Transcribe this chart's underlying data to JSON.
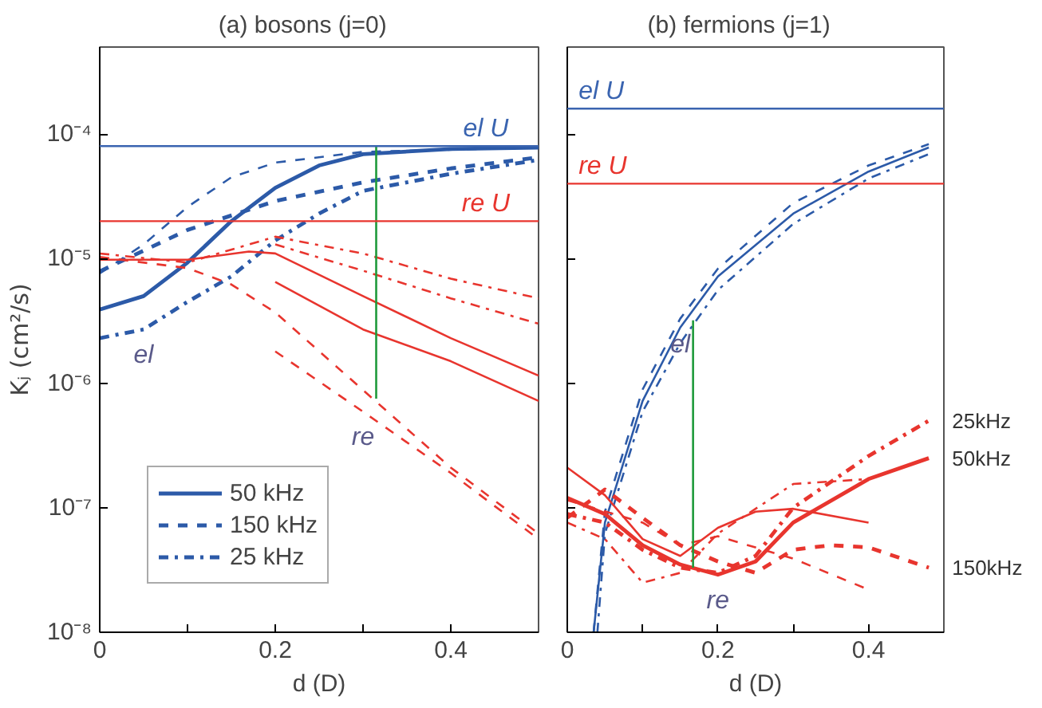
{
  "chart_data": [
    {
      "type": "line",
      "title": "(a)      bosons (j=0)",
      "xlabel": "d (D)",
      "ylabel": "Kⱼ (cm²/s)",
      "log": "y",
      "grid": false,
      "legend": "bottom left",
      "marker": "none",
      "xlim": [
        0,
        0.5
      ],
      "xticks": [
        {
          "value": 0,
          "label": "0"
        },
        {
          "value": 0.1,
          "label": null
        },
        {
          "value": 0.2,
          "label": "0.2"
        },
        {
          "value": 0.3,
          "label": null
        },
        {
          "value": 0.4,
          "label": "0.4"
        }
      ],
      "ylim": [
        1e-08,
        0.0005
      ],
      "yticks": [
        {
          "value": 1e-08,
          "label": "10⁻⁸"
        },
        {
          "value": 1e-07,
          "label": "10⁻⁷"
        },
        {
          "value": 1e-06,
          "label": "10⁻⁶"
        },
        {
          "value": 1e-05,
          "label": "10⁻⁵"
        },
        {
          "value": 0.0001,
          "label": "10⁻⁴"
        }
      ],
      "ref_lines": [
        {
          "axis": "y",
          "value": 8e-05,
          "label": "el U",
          "color": "#3a64b0"
        },
        {
          "axis": "y",
          "value": 2e-05,
          "label": "re U",
          "color": "#e8352e"
        }
      ],
      "annotations": [
        {
          "text": "el",
          "x": 0.05,
          "y": 2.7e-06
        },
        {
          "text": "re",
          "x": 0.3,
          "y": 5.9e-07
        }
      ],
      "series": [
        {
          "name": "50 kHz",
          "color": "#2c5aa8",
          "line_style": "solid",
          "x": [
            0,
            0.05,
            0.1,
            0.15,
            0.2,
            0.25,
            0.3,
            0.4,
            0.5
          ],
          "values": [
            3.9e-06,
            5e-06,
            9.3e-06,
            2e-05,
            3.7e-05,
            5.6e-05,
            6.9e-05,
            7.6e-05,
            7.8e-05
          ]
        },
        {
          "name": "150 kHz",
          "color": "#2c5aa8",
          "line_style": "dashed",
          "x": [
            0,
            0.1,
            0.2,
            0.3,
            0.4,
            0.5
          ],
          "values": [
            7.9e-06,
            1.7e-05,
            2.9e-05,
            4.1e-05,
            5.3e-05,
            6.5e-05
          ]
        },
        {
          "name": "25 kHz",
          "color": "#2c5aa8",
          "line_style": "dashdot",
          "x": [
            0,
            0.05,
            0.1,
            0.15,
            0.2,
            0.25,
            0.3,
            0.4,
            0.5
          ],
          "values": [
            2.3e-06,
            2.7e-06,
            4.5e-06,
            7.2e-06,
            1.4e-05,
            2.3e-05,
            3.5e-05,
            4.8e-05,
            6.2e-05
          ]
        },
        {
          "color": "#2c5aa8",
          "line_style": "dashed",
          "x": [
            0,
            0.05,
            0.1,
            0.15,
            0.2,
            0.3,
            0.5
          ],
          "values": [
            7.6e-06,
            1.3e-05,
            2.6e-05,
            4.5e-05,
            5.9e-05,
            7.2e-05,
            7.8e-05
          ]
        },
        {
          "color": "#e8352e",
          "line_style": "solid",
          "x": [
            0,
            0.1,
            0.17,
            0.2,
            0.3,
            0.4,
            0.5
          ],
          "values": [
            9.8e-06,
            9.8e-06,
            1.14e-05,
            1.1e-05,
            5e-06,
            2.3e-06,
            1.15e-06
          ]
        },
        {
          "color": "#e8352e",
          "line_style": "solid",
          "x": [
            0.2,
            0.3,
            0.4,
            0.5
          ],
          "values": [
            6.5e-06,
            2.7e-06,
            1.5e-06,
            7.2e-07
          ]
        },
        {
          "color": "#e8352e",
          "line_style": "dashed",
          "x": [
            0,
            0.1,
            0.15,
            0.2,
            0.3,
            0.4,
            0.5
          ],
          "values": [
            1.03e-05,
            8.4e-06,
            6.2e-06,
            3.7e-06,
            8.8e-07,
            2.1e-07,
            6.2e-08
          ]
        },
        {
          "color": "#e8352e",
          "line_style": "dashed",
          "x": [
            0.2,
            0.3,
            0.4,
            0.5
          ],
          "values": [
            1.8e-06,
            5.9e-07,
            1.9e-07,
            5.6e-08
          ]
        },
        {
          "color": "#e8352e",
          "line_style": "dashdot",
          "x": [
            0,
            0.1,
            0.2,
            0.3,
            0.4,
            0.5
          ],
          "values": [
            1.1e-05,
            9.3e-06,
            1.5e-05,
            1.1e-05,
            6.9e-06,
            4.8e-06
          ]
        },
        {
          "color": "#e8352e",
          "line_style": "dashdot",
          "x": [
            0.2,
            0.3,
            0.4,
            0.5
          ],
          "values": [
            1.3e-05,
            8e-06,
            4.8e-06,
            3e-06
          ]
        },
        {
          "color": "#1e9a3a",
          "line_style": "solid",
          "x": [
            0.315,
            0.315
          ],
          "values": [
            8e-05,
            7.5e-07
          ]
        }
      ]
    },
    {
      "type": "line",
      "title": "(b)      fermions (j=1)",
      "xlabel": "d (D)",
      "log": "y",
      "grid": false,
      "legend": false,
      "marker": "none",
      "tick_labels": "x",
      "xlim": [
        0,
        0.5
      ],
      "xticks": [
        {
          "value": 0,
          "label": "0"
        },
        {
          "value": 0.1,
          "label": null
        },
        {
          "value": 0.2,
          "label": "0.2"
        },
        {
          "value": 0.3,
          "label": null
        },
        {
          "value": 0.4,
          "label": "0.4"
        }
      ],
      "ylim": [
        1e-08,
        0.0005
      ],
      "yticks": [
        {
          "value": 1e-08,
          "label": null
        },
        {
          "value": 1e-07,
          "label": null
        },
        {
          "value": 1e-06,
          "label": null
        },
        {
          "value": 1e-05,
          "label": null
        },
        {
          "value": 0.0001,
          "label": null
        }
      ],
      "ref_lines": [
        {
          "axis": "y",
          "value": 0.00016,
          "label": "el U",
          "color": "#3a64b0"
        },
        {
          "axis": "y",
          "value": 4e-05,
          "label": "re U",
          "color": "#e8352e"
        }
      ],
      "annotations": [
        {
          "text": "el",
          "x": 0.15,
          "y": 3.3e-06
        },
        {
          "text": "re",
          "x": 0.2,
          "y": 2.9e-08
        }
      ],
      "series": [
        {
          "color": "#2c5aa8",
          "line_style": "solid",
          "x": [
            0.035,
            0.05,
            0.1,
            0.15,
            0.2,
            0.3,
            0.4,
            0.48
          ],
          "values": [
            1e-08,
            7.6e-08,
            7.2e-07,
            2.8e-06,
            7.2e-06,
            2.3e-05,
            5e-05,
            7.8e-05
          ]
        },
        {
          "color": "#2c5aa8",
          "line_style": "dashed",
          "x": [
            0.035,
            0.05,
            0.1,
            0.15,
            0.2,
            0.3,
            0.4,
            0.48
          ],
          "values": [
            1e-08,
            9.3e-08,
            8.9e-07,
            3.3e-06,
            8.3e-06,
            2.8e-05,
            5.6e-05,
            8.3e-05
          ]
        },
        {
          "color": "#2c5aa8",
          "line_style": "dashdot",
          "x": [
            0.04,
            0.05,
            0.1,
            0.15,
            0.2,
            0.3,
            0.4,
            0.48
          ],
          "values": [
            1e-08,
            6.2e-08,
            5.9e-07,
            2.1e-06,
            5.6e-06,
            1.9e-05,
            4.4e-05,
            6.9e-05
          ]
        },
        {
          "name": "50kHz",
          "color": "#e8352e",
          "line_style": "solid",
          "x": [
            0,
            0.05,
            0.1,
            0.15,
            0.2,
            0.25,
            0.3,
            0.4,
            0.48
          ],
          "values": [
            1.2e-07,
            8.9e-08,
            5e-08,
            3.5e-08,
            2.9e-08,
            3.7e-08,
            7.6e-08,
            1.7e-07,
            2.5e-07
          ]
        },
        {
          "color": "#e8352e",
          "line_style": "solid",
          "x": [
            0,
            0.05,
            0.1,
            0.15,
            0.2,
            0.25,
            0.3,
            0.4
          ],
          "values": [
            2.1e-07,
            1.26e-07,
            5.6e-08,
            4.1e-08,
            6.9e-08,
            9.3e-08,
            9.8e-08,
            7.6e-08
          ]
        },
        {
          "name": "150kHz",
          "color": "#e8352e",
          "line_style": "dashed",
          "x": [
            0,
            0.05,
            0.1,
            0.15,
            0.2,
            0.25,
            0.3,
            0.35,
            0.4,
            0.48
          ],
          "values": [
            8.3e-08,
            1.4e-07,
            8.3e-08,
            5e-08,
            3.7e-08,
            3e-08,
            4.6e-08,
            5e-08,
            4.8e-08,
            3.3e-08
          ]
        },
        {
          "color": "#e8352e",
          "line_style": "dashed",
          "x": [
            0,
            0.1,
            0.15,
            0.2,
            0.3,
            0.4
          ],
          "values": [
            1.15e-07,
            7.6e-08,
            5e-08,
            5.9e-08,
            3.9e-08,
            2.2e-08
          ]
        },
        {
          "name": "25kHz",
          "color": "#e8352e",
          "line_style": "dashdot",
          "x": [
            0,
            0.05,
            0.1,
            0.15,
            0.2,
            0.25,
            0.3,
            0.4,
            0.48
          ],
          "values": [
            8.9e-08,
            7.6e-08,
            4.6e-08,
            3.3e-08,
            3e-08,
            4.1e-08,
            1e-07,
            2.6e-07,
            5e-07
          ]
        },
        {
          "color": "#e8352e",
          "line_style": "dashdot",
          "x": [
            0,
            0.05,
            0.1,
            0.15,
            0.2,
            0.3,
            0.4
          ],
          "values": [
            7.6e-08,
            5.6e-08,
            2.5e-08,
            3e-08,
            6.2e-08,
            1.55e-07,
            1.7e-07
          ]
        },
        {
          "color": "#1e9a3a",
          "line_style": "solid",
          "x": [
            0.167,
            0.167
          ],
          "values": [
            3.2e-06,
            3.3e-08
          ]
        }
      ]
    }
  ]
}
